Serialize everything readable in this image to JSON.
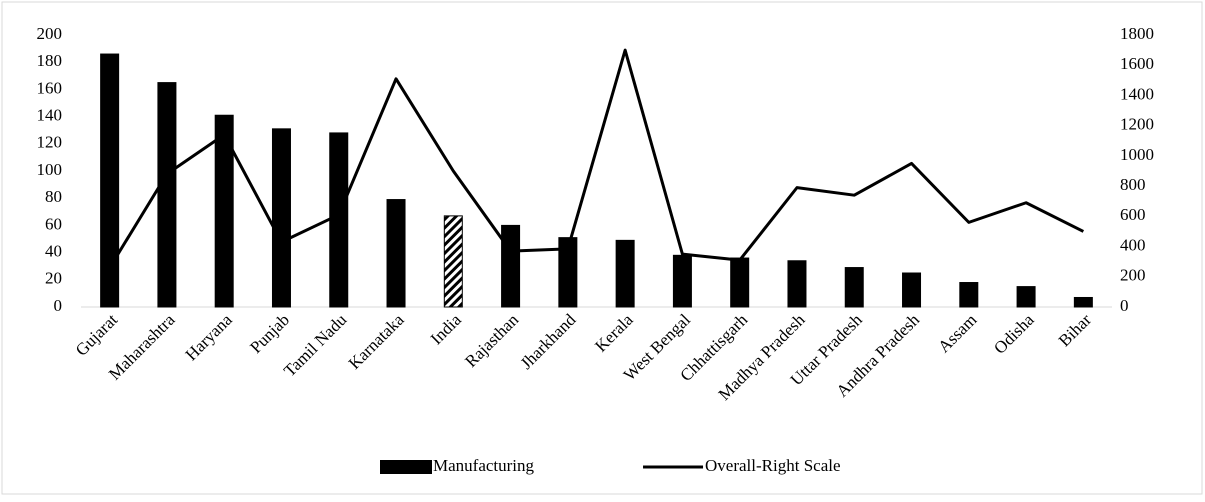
{
  "chart_data": {
    "type": "bar_line",
    "categories": [
      "Gujarat",
      "Maharashtra",
      "Haryana",
      "Punjab",
      "Tamil Nadu",
      "Karnataka",
      "India",
      "Rajasthan",
      "Jharkhand",
      "Kerala",
      "West Bengal",
      "Chhattisgarh",
      "Madhya Pradesh",
      "Uttar Pradesh",
      "Andhra Pradesh",
      "Assam",
      "Odisha",
      "Bihar"
    ],
    "series": [
      {
        "name": "Manufacturing",
        "type": "bar",
        "color": "#000000",
        "hatched_index": 6,
        "values": [
          186,
          165,
          141,
          131,
          128,
          79,
          67,
          60,
          51,
          49,
          38,
          36,
          34,
          29,
          25,
          18,
          15,
          7
        ]
      },
      {
        "name": "Overall-Right Scale",
        "type": "line",
        "color": "#000000",
        "axis": "y2",
        "values": [
          260,
          880,
          1140,
          430,
          610,
          1510,
          900,
          370,
          385,
          1700,
          350,
          310,
          790,
          740,
          950,
          560,
          690,
          500
        ]
      }
    ],
    "ylim": [
      0,
      200
    ],
    "yticks": [
      0,
      20,
      40,
      60,
      80,
      100,
      120,
      140,
      160,
      180,
      200
    ],
    "y2lim": [
      0,
      1800
    ],
    "y2ticks": [
      0,
      200,
      400,
      600,
      800,
      1000,
      1200,
      1400,
      1600,
      1800
    ],
    "grid": false,
    "legend": "bottom"
  }
}
